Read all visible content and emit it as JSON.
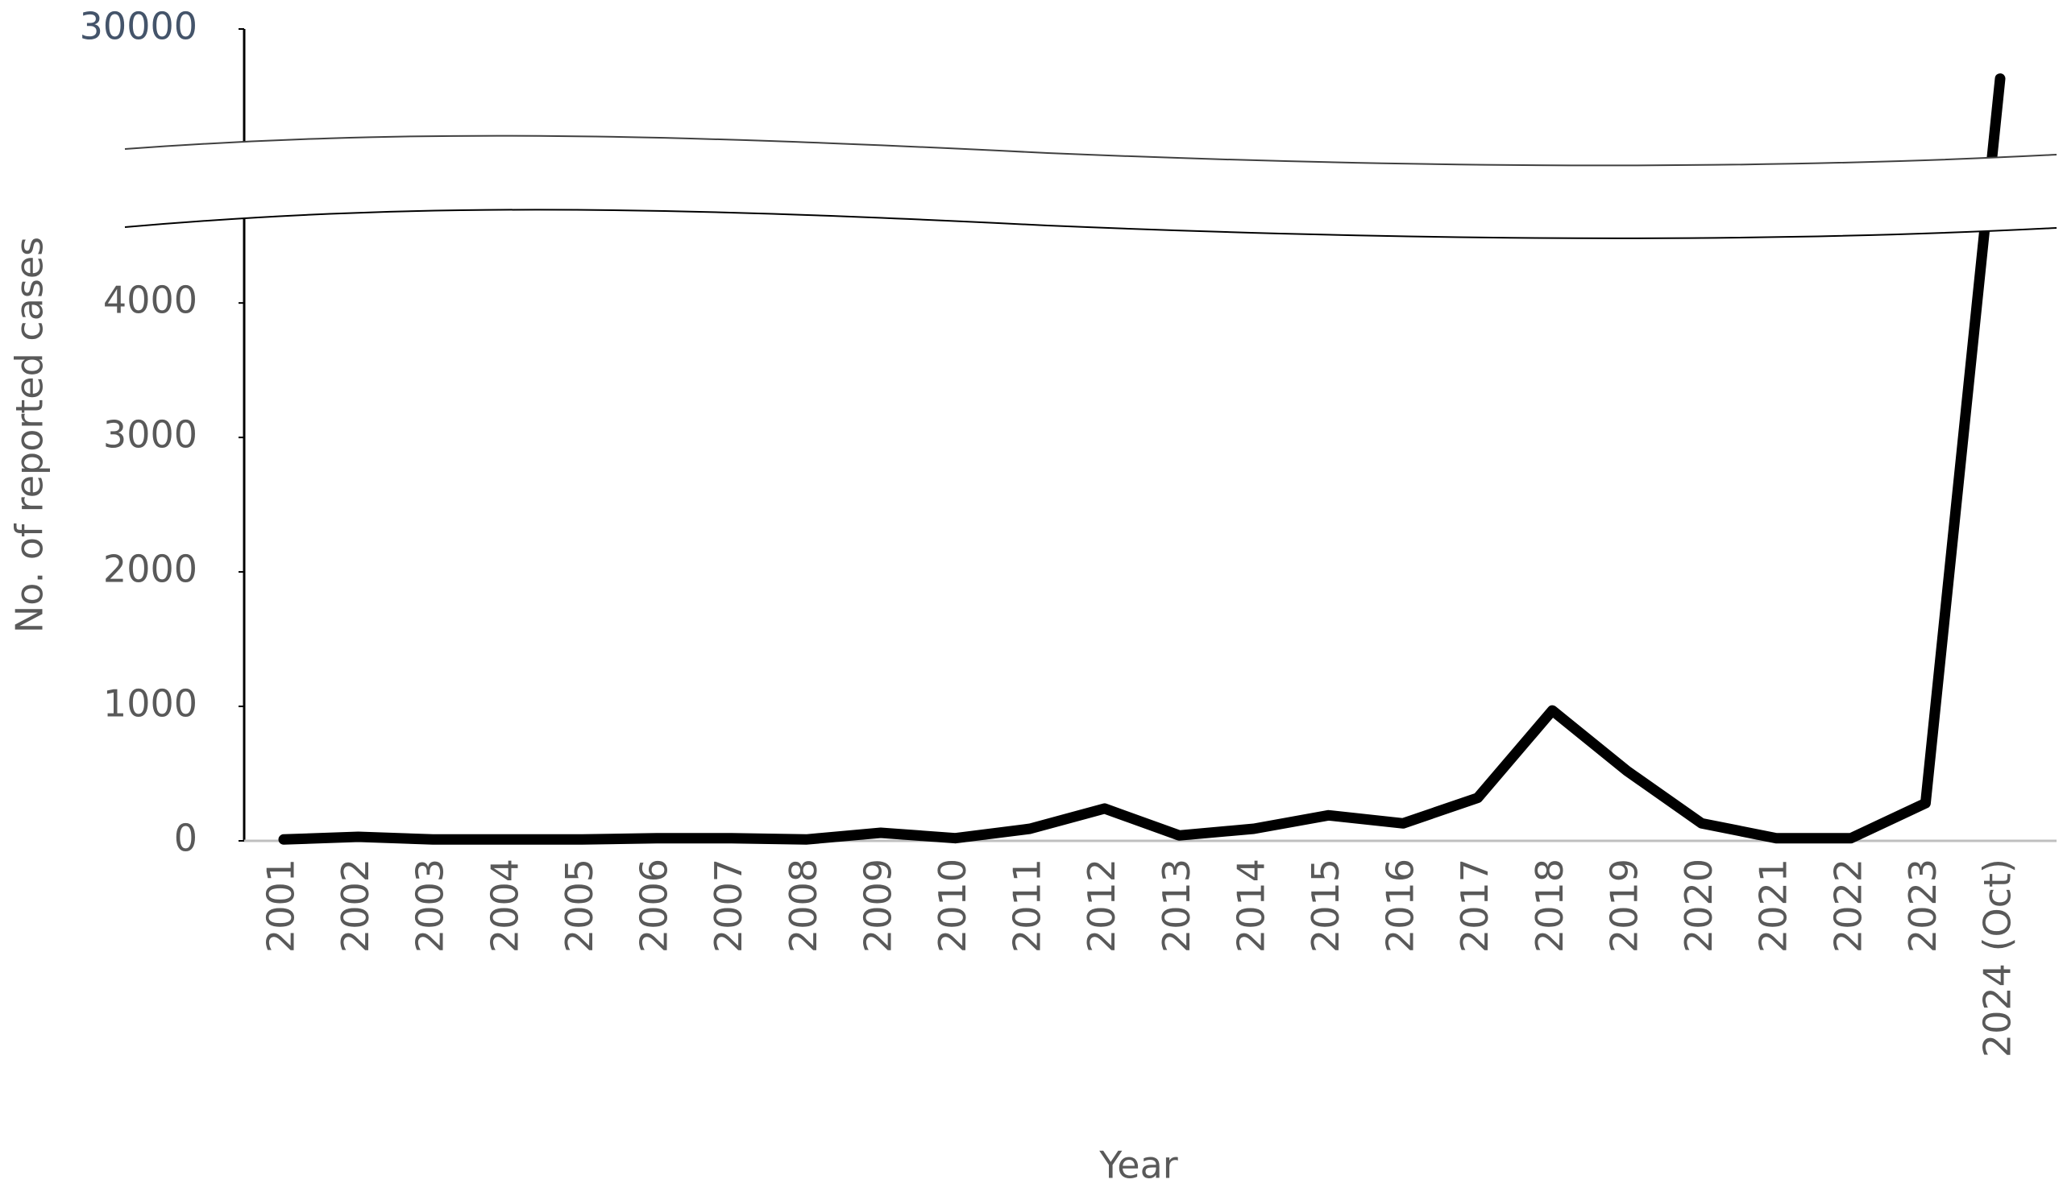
{
  "chart_data": {
    "type": "line",
    "x_label": "Year",
    "y_label": "No. of reported cases",
    "categories": [
      "2001",
      "2002",
      "2003",
      "2004",
      "2005",
      "2006",
      "2007",
      "2008",
      "2009",
      "2010",
      "2011",
      "2012",
      "2013",
      "2014",
      "2015",
      "2016",
      "2017",
      "2018",
      "2019",
      "2020",
      "2021",
      "2022",
      "2023",
      "2024 (Oct)"
    ],
    "values": [
      10,
      30,
      10,
      10,
      10,
      20,
      20,
      10,
      60,
      20,
      90,
      240,
      40,
      90,
      190,
      130,
      320,
      970,
      520,
      130,
      20,
      20,
      280,
      26000
    ],
    "color": "#000000",
    "ylim": [
      0,
      30000
    ],
    "y_break": [
      4600,
      20000
    ],
    "yticks": [
      0,
      1000,
      2000,
      3000,
      4000,
      30000
    ],
    "grid": false
  }
}
